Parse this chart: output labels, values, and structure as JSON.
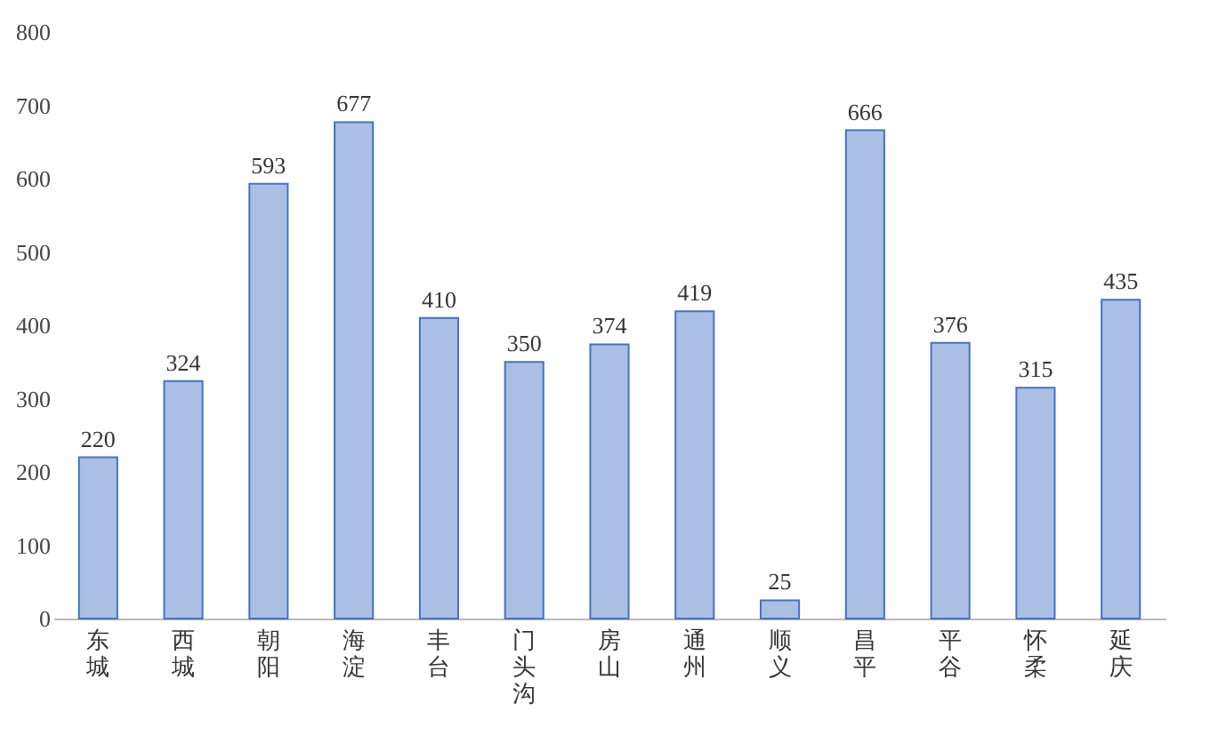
{
  "chart_data": {
    "type": "bar",
    "categories": [
      "东城",
      "西城",
      "朝阳",
      "海淀",
      "丰台",
      "门头沟",
      "房山",
      "通州",
      "顺义",
      "昌平",
      "平谷",
      "怀柔",
      "延庆"
    ],
    "values": [
      220,
      324,
      593,
      677,
      410,
      350,
      374,
      419,
      25,
      666,
      376,
      315,
      435
    ],
    "color": "#4472c4",
    "ylim": [
      0,
      800
    ],
    "yticks": [
      0,
      100,
      200,
      300,
      400,
      500,
      600,
      700,
      800
    ],
    "grid": false,
    "data_labels": true
  }
}
